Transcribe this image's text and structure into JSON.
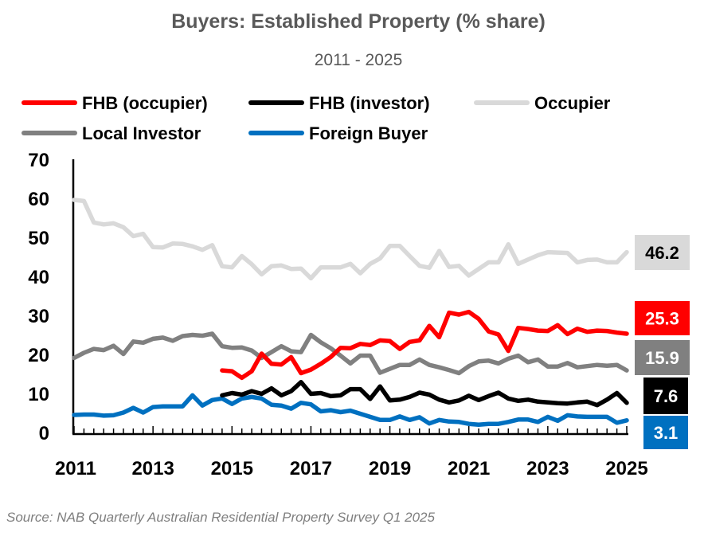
{
  "chart_data": {
    "type": "line",
    "title": "Buyers: Established Property (% share)",
    "subtitle": "2011 - 2025",
    "xlabel": "",
    "ylabel": "",
    "x_start": "2011 Q1",
    "x_end": "2025 Q1",
    "frequency": "quarterly",
    "xticks": [
      "2011",
      "2013",
      "2015",
      "2017",
      "2019",
      "2021",
      "2023",
      "2025"
    ],
    "yticks": [
      "0",
      "10",
      "20",
      "30",
      "40",
      "50",
      "60",
      "70"
    ],
    "ylim": [
      0,
      70
    ],
    "grid": false,
    "legend_position": "top",
    "series": [
      {
        "name": "FHB (occupier)",
        "color": "#FF0000",
        "label_text_color": "#FFFFFF",
        "last_label": "25.3",
        "values": [
          null,
          null,
          null,
          null,
          null,
          null,
          null,
          null,
          null,
          null,
          null,
          null,
          null,
          null,
          null,
          15.9,
          15.7,
          14.0,
          15.7,
          20.2,
          17.6,
          17.4,
          19.3,
          15.2,
          16.1,
          17.6,
          19.3,
          21.7,
          21.6,
          22.7,
          22.4,
          23.6,
          23.4,
          21.4,
          23.2,
          23.6,
          27.3,
          24.4,
          30.7,
          30.2,
          30.9,
          29.1,
          25.9,
          25.1,
          20.9,
          26.8,
          26.5,
          26.1,
          26.0,
          27.5,
          25.2,
          26.6,
          25.8,
          26.1,
          26.0,
          25.6,
          25.3
        ]
      },
      {
        "name": "FHB (investor)",
        "color": "#000000",
        "label_text_color": "#FFFFFF",
        "last_label": "7.6",
        "values": [
          null,
          null,
          null,
          null,
          null,
          null,
          null,
          null,
          null,
          null,
          null,
          null,
          null,
          null,
          null,
          9.5,
          10.1,
          9.7,
          10.6,
          9.9,
          11.3,
          9.5,
          10.6,
          12.9,
          9.9,
          10.1,
          9.3,
          9.5,
          11.1,
          11.1,
          8.6,
          11.8,
          8.2,
          8.4,
          9.1,
          10.2,
          9.7,
          8.4,
          7.7,
          8.2,
          9.4,
          8.3,
          9.3,
          10.2,
          8.7,
          8.1,
          8.4,
          7.9,
          7.7,
          7.5,
          7.4,
          7.7,
          7.9,
          7.0,
          8.4,
          10.1,
          7.6
        ]
      },
      {
        "name": "Occupier",
        "color": "#D9D9D9",
        "label_text_color": "#000000",
        "last_label": "46.2",
        "values": [
          59.6,
          59.3,
          53.8,
          53.3,
          53.6,
          52.6,
          50.3,
          50.9,
          47.5,
          47.4,
          48.4,
          48.3,
          47.7,
          46.8,
          48.0,
          42.6,
          42.3,
          45.2,
          43.1,
          40.5,
          42.6,
          42.8,
          41.9,
          42.0,
          39.5,
          42.3,
          42.3,
          42.3,
          43.2,
          40.8,
          43.2,
          44.6,
          47.8,
          47.8,
          45.2,
          42.7,
          42.2,
          46.5,
          42.4,
          42.7,
          40.2,
          41.9,
          43.6,
          43.6,
          48.2,
          43.2,
          44.3,
          45.4,
          46.2,
          46.1,
          46.0,
          43.6,
          44.2,
          44.3,
          43.6,
          43.6,
          46.2
        ]
      },
      {
        "name": "Local Investor",
        "color": "#808080",
        "label_text_color": "#FFFFFF",
        "last_label": "15.9",
        "values": [
          19.1,
          20.4,
          21.4,
          21.1,
          22.2,
          20.1,
          23.3,
          23.0,
          24.0,
          24.3,
          23.5,
          24.7,
          25.0,
          24.8,
          25.3,
          22.1,
          21.7,
          21.8,
          21.0,
          19.1,
          20.6,
          22.1,
          20.8,
          20.6,
          25.0,
          23.1,
          21.6,
          19.7,
          17.7,
          19.7,
          19.7,
          15.3,
          16.3,
          17.3,
          17.3,
          18.7,
          17.3,
          16.7,
          16.0,
          15.2,
          17.0,
          18.2,
          18.4,
          17.7,
          18.9,
          19.7,
          18.0,
          18.7,
          16.9,
          16.9,
          17.8,
          16.7,
          17.0,
          17.3,
          17.1,
          17.3,
          15.9
        ]
      },
      {
        "name": "Foreign Buyer",
        "color": "#0070C0",
        "label_text_color": "#FFFFFF",
        "last_label": "3.1",
        "values": [
          4.5,
          4.6,
          4.6,
          4.3,
          4.4,
          5.1,
          6.3,
          5.1,
          6.5,
          6.7,
          6.7,
          6.7,
          9.5,
          6.9,
          8.3,
          8.7,
          7.3,
          8.7,
          9.1,
          8.7,
          7.1,
          6.9,
          6.1,
          7.6,
          7.2,
          5.4,
          5.7,
          5.2,
          5.6,
          4.8,
          4.0,
          3.2,
          3.2,
          4.1,
          3.2,
          3.9,
          2.3,
          3.2,
          2.8,
          2.7,
          2.2,
          2.0,
          2.2,
          2.2,
          2.7,
          3.3,
          3.3,
          2.7,
          4.0,
          3.0,
          4.4,
          4.1,
          4.0,
          4.0,
          4.0,
          2.5,
          3.1
        ]
      }
    ],
    "source": "Source: NAB Quarterly Australian Residential Property Survey Q1 2025"
  }
}
